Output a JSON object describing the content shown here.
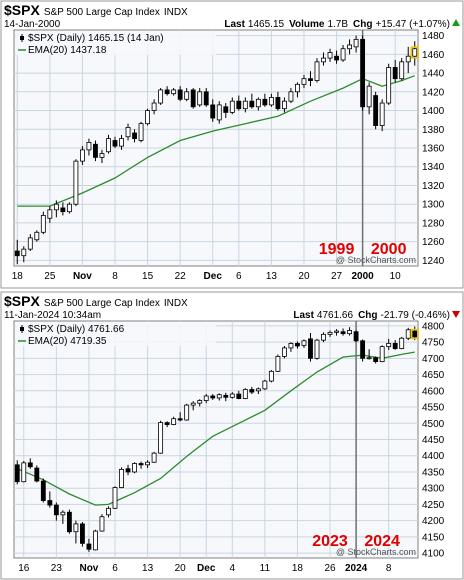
{
  "chart_data": [
    {
      "type": "candlestick",
      "symbol": "$SPX",
      "name": "S&P 500 Large Cap Index",
      "exchange": "INDX",
      "date_label": "14-Jan-2000",
      "last_label": "Last",
      "last": "1465.15",
      "volume_label": "Volume",
      "volume": "1.7B",
      "chg_label": "Chg",
      "chg": "+15.47 (+1.07%)",
      "chg_direction": "up",
      "legend_price": "$SPX (Daily) 1465.15 (14 Jan)",
      "legend_ema": "EMA(20) 1437.18",
      "watermark": "@ StockCharts.com",
      "y_ticks": [
        1240,
        1260,
        1280,
        1300,
        1320,
        1340,
        1360,
        1380,
        1400,
        1420,
        1440,
        1460,
        1480
      ],
      "ylim": [
        1234,
        1486
      ],
      "n_slots": 62,
      "x_ticks": [
        {
          "label": "18",
          "slot": 0
        },
        {
          "label": "25",
          "slot": 5
        },
        {
          "label": "Nov",
          "slot": 10,
          "bold": true
        },
        {
          "label": "8",
          "slot": 15
        },
        {
          "label": "15",
          "slot": 20
        },
        {
          "label": "22",
          "slot": 25
        },
        {
          "label": "Dec",
          "slot": 30,
          "bold": true
        },
        {
          "label": "6",
          "slot": 34
        },
        {
          "label": "13",
          "slot": 39
        },
        {
          "label": "20",
          "slot": 44
        },
        {
          "label": "27",
          "slot": 49
        },
        {
          "label": "2000",
          "slot": 53,
          "bold": true
        },
        {
          "label": "10",
          "slot": 58
        }
      ],
      "divider_slot": 53,
      "year_labels": [
        {
          "label": "1999",
          "slot": 49
        },
        {
          "label": "2000",
          "slot": 57
        }
      ],
      "candles": [
        [
          1250,
          1262,
          1236,
          1245
        ],
        [
          1245,
          1255,
          1238,
          1252
        ],
        [
          1252,
          1268,
          1250,
          1264
        ],
        [
          1262,
          1272,
          1260,
          1270
        ],
        [
          1270,
          1292,
          1268,
          1288
        ],
        [
          1285,
          1298,
          1280,
          1294
        ],
        [
          1294,
          1304,
          1286,
          1300
        ],
        [
          1296,
          1302,
          1288,
          1292
        ],
        [
          1292,
          1302,
          1290,
          1300
        ],
        [
          1300,
          1348,
          1298,
          1346
        ],
        [
          1346,
          1362,
          1342,
          1358
        ],
        [
          1358,
          1370,
          1352,
          1366
        ],
        [
          1364,
          1368,
          1346,
          1350
        ],
        [
          1350,
          1358,
          1344,
          1354
        ],
        [
          1356,
          1374,
          1354,
          1370
        ],
        [
          1368,
          1372,
          1360,
          1362
        ],
        [
          1362,
          1374,
          1358,
          1370
        ],
        [
          1372,
          1386,
          1368,
          1382
        ],
        [
          1376,
          1380,
          1366,
          1370
        ],
        [
          1368,
          1388,
          1366,
          1386
        ],
        [
          1386,
          1402,
          1384,
          1400
        ],
        [
          1400,
          1412,
          1396,
          1408
        ],
        [
          1408,
          1424,
          1406,
          1422
        ],
        [
          1422,
          1426,
          1416,
          1418
        ],
        [
          1418,
          1424,
          1416,
          1422
        ],
        [
          1422,
          1426,
          1410,
          1412
        ],
        [
          1412,
          1424,
          1410,
          1420
        ],
        [
          1422,
          1424,
          1402,
          1404
        ],
        [
          1406,
          1424,
          1404,
          1420
        ],
        [
          1420,
          1424,
          1404,
          1406
        ],
        [
          1406,
          1412,
          1388,
          1392
        ],
        [
          1390,
          1410,
          1386,
          1406
        ],
        [
          1404,
          1408,
          1392,
          1398
        ],
        [
          1398,
          1414,
          1396,
          1410
        ],
        [
          1410,
          1416,
          1400,
          1402
        ],
        [
          1402,
          1414,
          1398,
          1410
        ],
        [
          1410,
          1418,
          1402,
          1404
        ],
        [
          1404,
          1414,
          1400,
          1412
        ],
        [
          1412,
          1418,
          1404,
          1406
        ],
        [
          1406,
          1418,
          1404,
          1414
        ],
        [
          1414,
          1420,
          1400,
          1402
        ],
        [
          1402,
          1414,
          1398,
          1410
        ],
        [
          1410,
          1424,
          1408,
          1420
        ],
        [
          1420,
          1430,
          1414,
          1428
        ],
        [
          1428,
          1438,
          1424,
          1434
        ],
        [
          1434,
          1442,
          1426,
          1432
        ],
        [
          1432,
          1456,
          1430,
          1452
        ],
        [
          1452,
          1462,
          1448,
          1456
        ],
        [
          1456,
          1466,
          1452,
          1462
        ],
        [
          1458,
          1464,
          1450,
          1454
        ],
        [
          1454,
          1470,
          1452,
          1466
        ],
        [
          1466,
          1476,
          1460,
          1470
        ],
        [
          1468,
          1480,
          1462,
          1476
        ],
        [
          1476,
          1480,
          1400,
          1404
        ],
        [
          1404,
          1430,
          1396,
          1426
        ],
        [
          1416,
          1420,
          1380,
          1384
        ],
        [
          1384,
          1412,
          1378,
          1408
        ],
        [
          1408,
          1450,
          1406,
          1446
        ],
        [
          1446,
          1454,
          1430,
          1434
        ],
        [
          1434,
          1456,
          1432,
          1452
        ],
        [
          1452,
          1468,
          1440,
          1458
        ],
        [
          1458,
          1474,
          1448,
          1466
        ]
      ],
      "ema": [
        [
          0,
          1298
        ],
        [
          5,
          1298
        ],
        [
          10,
          1312
        ],
        [
          15,
          1328
        ],
        [
          20,
          1350
        ],
        [
          25,
          1368
        ],
        [
          30,
          1378
        ],
        [
          35,
          1386
        ],
        [
          40,
          1394
        ],
        [
          45,
          1410
        ],
        [
          50,
          1424
        ],
        [
          53,
          1434
        ],
        [
          56,
          1426
        ],
        [
          59,
          1432
        ],
        [
          61,
          1437.18
        ]
      ]
    },
    {
      "type": "candlestick",
      "symbol": "$SPX",
      "name": "S&P 500 Large Cap Index",
      "exchange": "INDX",
      "date_label": "11-Jan-2024 10:34am",
      "last_label": "Last",
      "last": "4761.66",
      "volume_label": "",
      "volume": "",
      "chg_label": "Chg",
      "chg": "-21.79 (-0.46%)",
      "chg_direction": "down",
      "legend_price": "$SPX (Daily) 4761.66",
      "legend_ema": "EMA(20) 4719.35",
      "watermark": "@ StockCharts.com",
      "y_ticks": [
        4100,
        4150,
        4200,
        4250,
        4300,
        4350,
        4400,
        4450,
        4500,
        4550,
        4600,
        4650,
        4700,
        4750,
        4800
      ],
      "ylim": [
        4085,
        4815
      ],
      "n_slots": 62,
      "x_ticks": [
        {
          "label": "16",
          "slot": 1
        },
        {
          "label": "23",
          "slot": 6
        },
        {
          "label": "Nov",
          "slot": 11,
          "bold": true
        },
        {
          "label": "6",
          "slot": 15
        },
        {
          "label": "13",
          "slot": 20
        },
        {
          "label": "20",
          "slot": 25
        },
        {
          "label": "Dec",
          "slot": 29,
          "bold": true
        },
        {
          "label": "4",
          "slot": 33
        },
        {
          "label": "11",
          "slot": 38
        },
        {
          "label": "18",
          "slot": 43
        },
        {
          "label": "26",
          "slot": 48
        },
        {
          "label": "2024",
          "slot": 52,
          "bold": true
        },
        {
          "label": "8",
          "slot": 57
        }
      ],
      "divider_slot": 52,
      "year_labels": [
        {
          "label": "2023",
          "slot": 48
        },
        {
          "label": "2024",
          "slot": 56
        }
      ],
      "candles": [
        [
          4372,
          4386,
          4312,
          4320
        ],
        [
          4320,
          4384,
          4318,
          4378
        ],
        [
          4378,
          4392,
          4360,
          4366
        ],
        [
          4362,
          4370,
          4318,
          4322
        ],
        [
          4322,
          4330,
          4256,
          4262
        ],
        [
          4262,
          4290,
          4240,
          4248
        ],
        [
          4248,
          4256,
          4200,
          4218
        ],
        [
          4218,
          4232,
          4190,
          4226
        ],
        [
          4226,
          4234,
          4160,
          4166
        ],
        [
          4166,
          4200,
          4130,
          4190
        ],
        [
          4190,
          4196,
          4120,
          4130
        ],
        [
          4128,
          4144,
          4104,
          4112
        ],
        [
          4110,
          4172,
          4108,
          4168
        ],
        [
          4168,
          4220,
          4166,
          4212
        ],
        [
          4218,
          4244,
          4210,
          4238
        ],
        [
          4238,
          4306,
          4236,
          4302
        ],
        [
          4302,
          4364,
          4300,
          4358
        ],
        [
          4360,
          4372,
          4340,
          4350
        ],
        [
          4350,
          4380,
          4346,
          4376
        ],
        [
          4376,
          4382,
          4360,
          4372
        ],
        [
          4372,
          4386,
          4362,
          4380
        ],
        [
          4380,
          4412,
          4378,
          4408
        ],
        [
          4408,
          4508,
          4406,
          4502
        ],
        [
          4502,
          4506,
          4488,
          4496
        ],
        [
          4496,
          4520,
          4494,
          4514
        ],
        [
          4514,
          4534,
          4506,
          4510
        ],
        [
          4510,
          4560,
          4508,
          4556
        ],
        [
          4556,
          4568,
          4540,
          4562
        ],
        [
          4562,
          4574,
          4552,
          4570
        ],
        [
          4570,
          4590,
          4562,
          4584
        ],
        [
          4584,
          4590,
          4572,
          4578
        ],
        [
          4578,
          4592,
          4570,
          4588
        ],
        [
          4586,
          4594,
          4568,
          4580
        ],
        [
          4580,
          4596,
          4576,
          4590
        ],
        [
          4590,
          4600,
          4574,
          4576
        ],
        [
          4576,
          4608,
          4574,
          4604
        ],
        [
          4604,
          4612,
          4590,
          4596
        ],
        [
          4600,
          4610,
          4590,
          4606
        ],
        [
          4606,
          4634,
          4602,
          4630
        ],
        [
          4630,
          4664,
          4626,
          4660
        ],
        [
          4660,
          4712,
          4658,
          4706
        ],
        [
          4706,
          4738,
          4700,
          4732
        ],
        [
          4732,
          4750,
          4720,
          4746
        ],
        [
          4746,
          4752,
          4730,
          4738
        ],
        [
          4740,
          4758,
          4732,
          4754
        ],
        [
          4760,
          4778,
          4690,
          4700
        ],
        [
          4700,
          4760,
          4696,
          4756
        ],
        [
          4756,
          4780,
          4750,
          4774
        ],
        [
          4774,
          4786,
          4766,
          4780
        ],
        [
          4780,
          4790,
          4770,
          4784
        ],
        [
          4782,
          4792,
          4770,
          4776
        ],
        [
          4776,
          4796,
          4770,
          4786
        ],
        [
          4782,
          4786,
          4750,
          4754
        ],
        [
          4754,
          4758,
          4690,
          4700
        ],
        [
          4700,
          4728,
          4696,
          4702
        ],
        [
          4702,
          4706,
          4684,
          4690
        ],
        [
          4690,
          4740,
          4688,
          4736
        ],
        [
          4736,
          4760,
          4726,
          4746
        ],
        [
          4746,
          4756,
          4726,
          4730
        ],
        [
          4730,
          4766,
          4728,
          4762
        ],
        [
          4762,
          4794,
          4756,
          4788
        ],
        [
          4784,
          4798,
          4756,
          4766
        ]
      ],
      "ema": [
        [
          0,
          4360
        ],
        [
          4,
          4326
        ],
        [
          8,
          4282
        ],
        [
          12,
          4248
        ],
        [
          14,
          4250
        ],
        [
          18,
          4286
        ],
        [
          22,
          4330
        ],
        [
          26,
          4398
        ],
        [
          30,
          4460
        ],
        [
          34,
          4500
        ],
        [
          38,
          4540
        ],
        [
          42,
          4600
        ],
        [
          46,
          4658
        ],
        [
          50,
          4704
        ],
        [
          53,
          4710
        ],
        [
          56,
          4700
        ],
        [
          59,
          4712
        ],
        [
          61,
          4719.35
        ]
      ]
    }
  ]
}
